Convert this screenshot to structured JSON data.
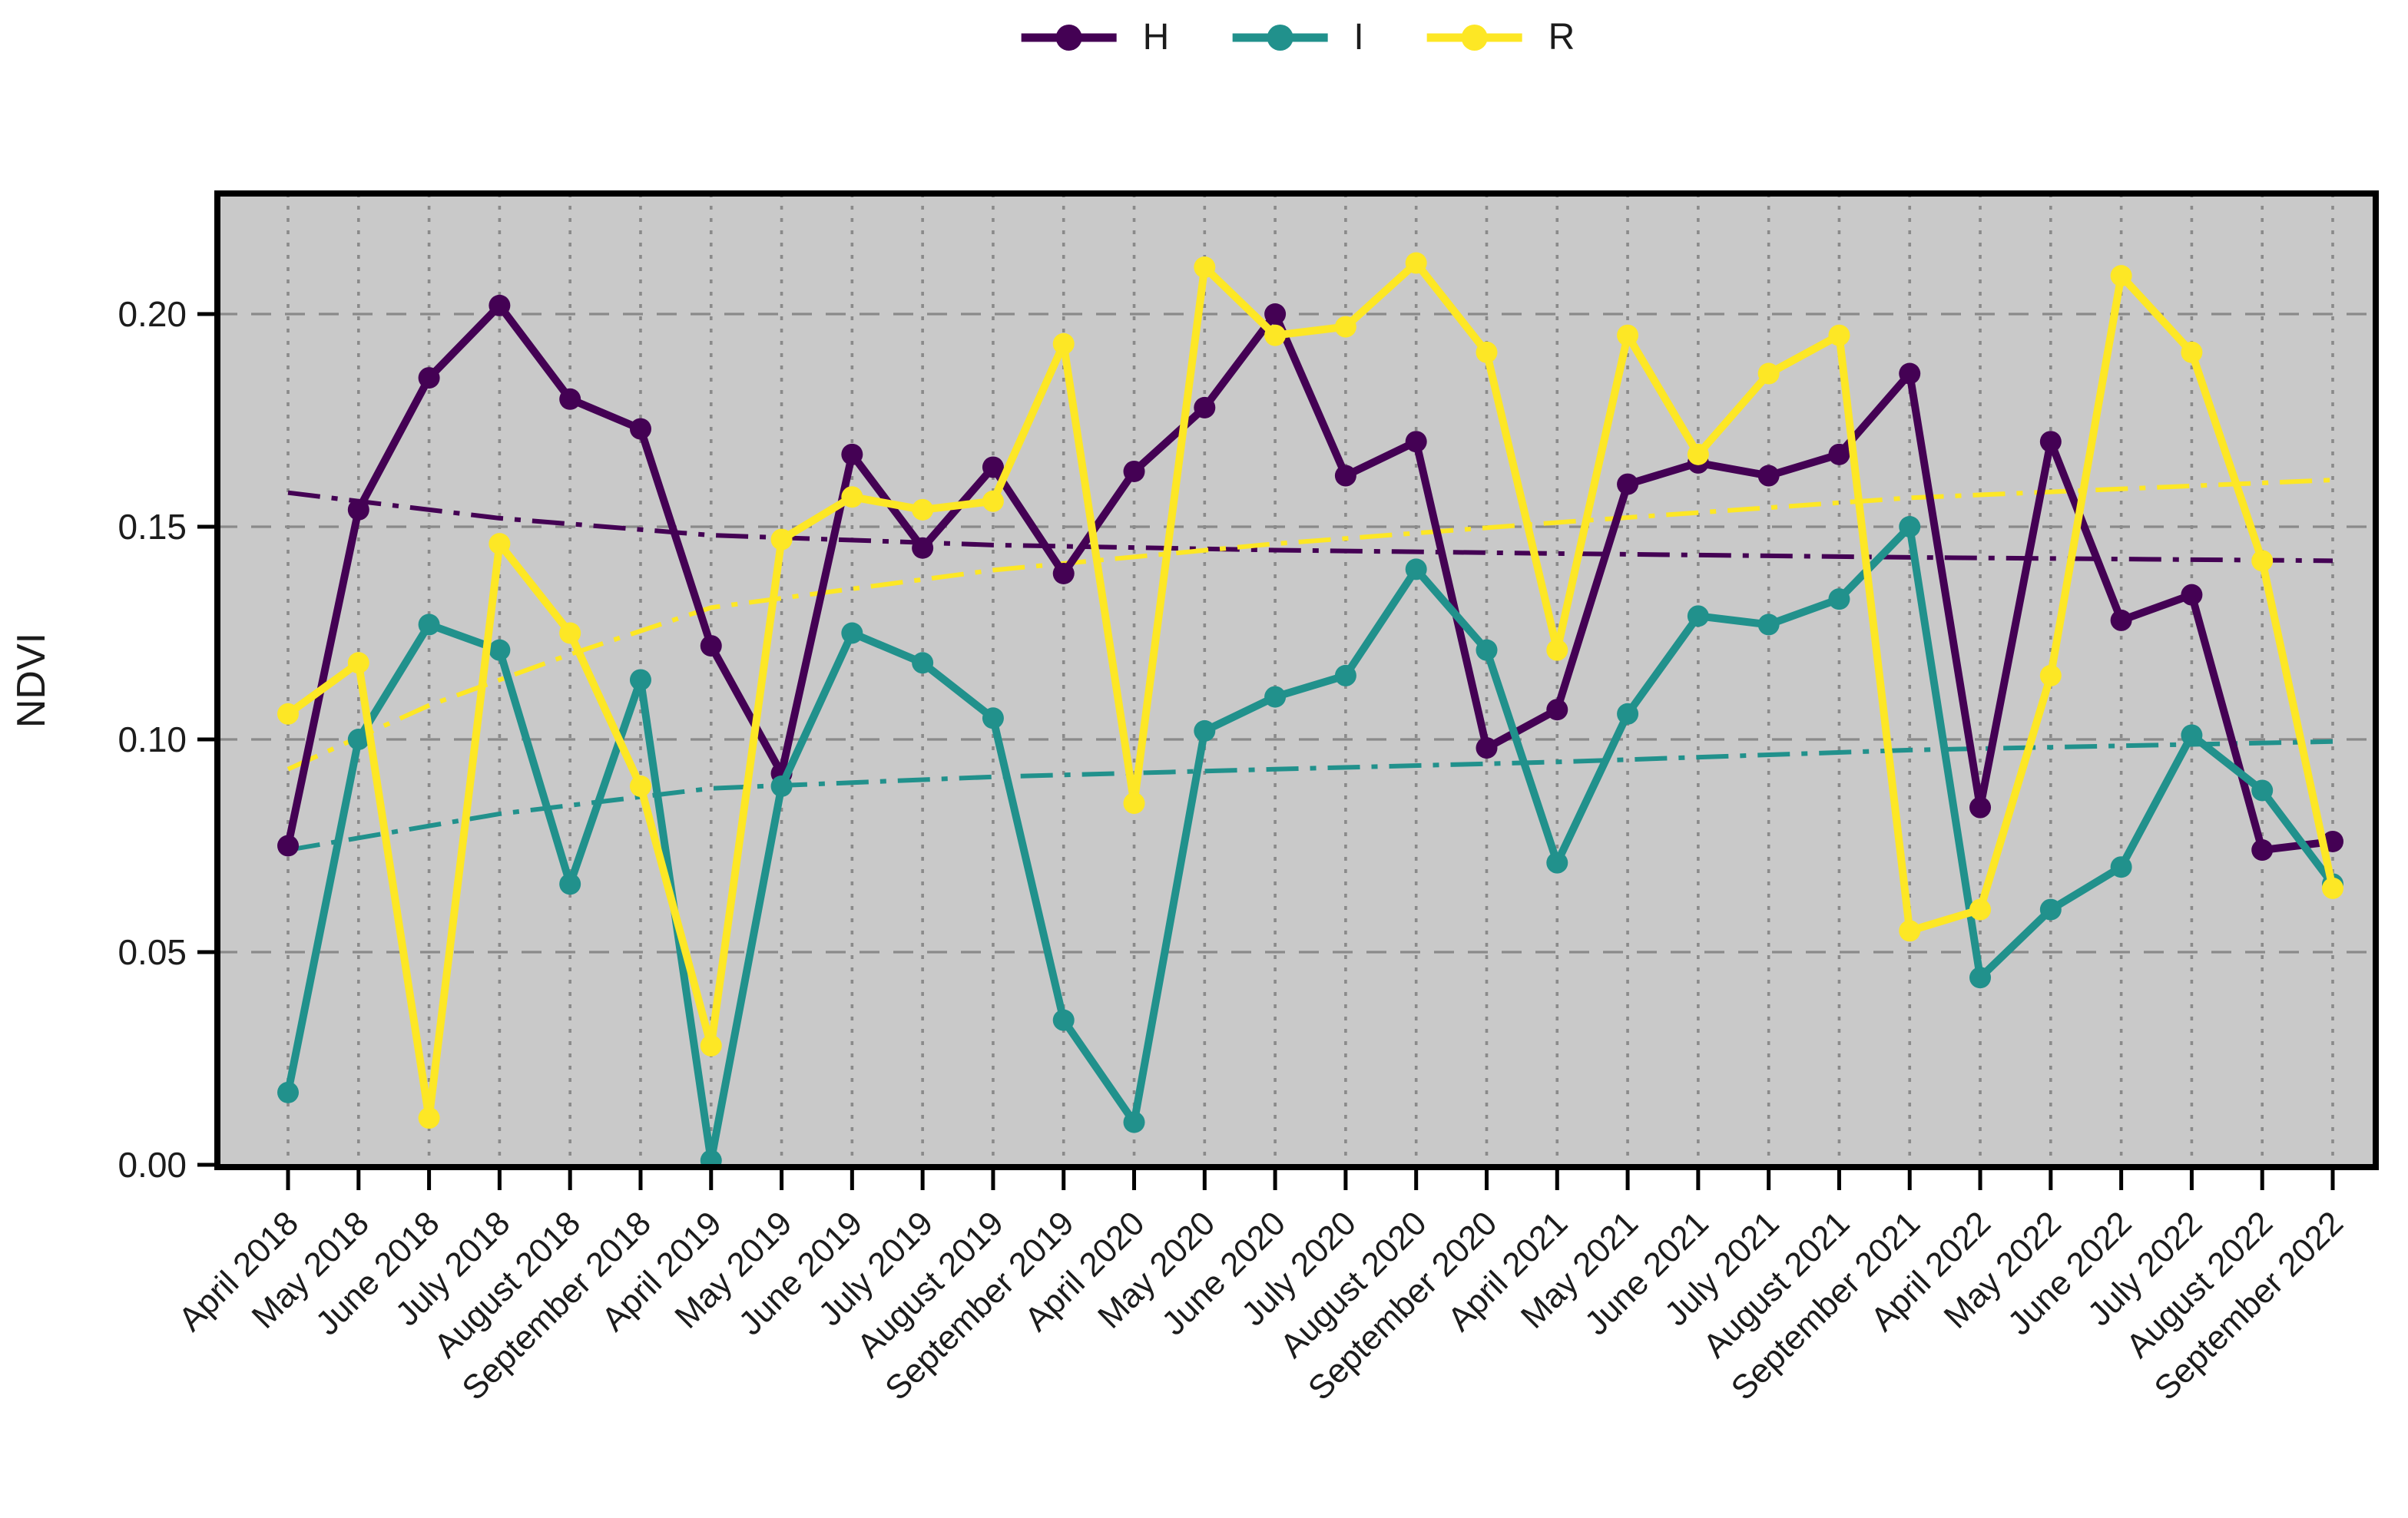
{
  "figure": {
    "background": "#ffffff",
    "plot_border_color": "#000000"
  },
  "legend": {
    "position": "top-center",
    "items": [
      {
        "label": "H",
        "color": "#440154"
      },
      {
        "label": "I",
        "color": "#21918c"
      },
      {
        "label": "R",
        "color": "#fde725"
      }
    ]
  },
  "chart_data": {
    "type": "line",
    "title": "",
    "xlabel": "",
    "ylabel": "NDVI",
    "ylim": [
      0,
      0.228
    ],
    "grid": true,
    "plot_background": "#c9c9c9",
    "gridline_color": "#8a8a8a",
    "legend_position": "top-center",
    "yticks": [
      {
        "label": "0.00",
        "value": 0.0
      },
      {
        "label": "0.05",
        "value": 0.05
      },
      {
        "label": "0.10",
        "value": 0.1
      },
      {
        "label": "0.15",
        "value": 0.15
      },
      {
        "label": "0.20",
        "value": 0.2
      }
    ],
    "categories": [
      "April 2018",
      "May 2018",
      "June 2018",
      "July 2018",
      "August 2018",
      "September 2018",
      "April 2019",
      "May 2019",
      "June 2019",
      "July 2019",
      "August 2019",
      "September 2019",
      "April 2020",
      "May 2020",
      "June 2020",
      "July 2020",
      "August 2020",
      "September 2020",
      "April 2021",
      "May 2021",
      "June 2021",
      "July 2021",
      "August 2021",
      "September 2021",
      "April 2022",
      "May 2022",
      "June 2022",
      "July 2022",
      "August 2022",
      "September 2022"
    ],
    "series": [
      {
        "name": "H",
        "color": "#440154",
        "values": [
          0.075,
          0.154,
          0.185,
          0.202,
          0.18,
          0.173,
          0.122,
          0.092,
          0.167,
          0.145,
          0.164,
          0.139,
          0.163,
          0.178,
          0.2,
          0.162,
          0.17,
          0.098,
          0.107,
          0.16,
          0.165,
          0.162,
          0.167,
          0.186,
          0.084,
          0.17,
          0.128,
          0.134,
          0.074,
          0.076
        ]
      },
      {
        "name": "I",
        "color": "#21918c",
        "values": [
          0.017,
          0.1,
          0.127,
          0.121,
          0.066,
          0.114,
          0.001,
          0.089,
          0.125,
          0.118,
          0.105,
          0.034,
          0.01,
          0.102,
          0.11,
          0.115,
          0.14,
          0.121,
          0.071,
          0.106,
          0.129,
          0.127,
          0.133,
          0.15,
          0.044,
          0.06,
          0.07,
          0.101,
          0.088,
          0.066
        ]
      },
      {
        "name": "R",
        "color": "#fde725",
        "values": [
          0.106,
          0.118,
          0.011,
          0.146,
          0.125,
          0.089,
          0.028,
          0.147,
          0.157,
          0.154,
          0.156,
          0.193,
          0.085,
          0.211,
          0.195,
          0.197,
          0.212,
          0.191,
          0.121,
          0.195,
          0.167,
          0.186,
          0.195,
          0.055,
          0.06,
          0.115,
          0.209,
          0.191,
          0.142,
          0.065
        ]
      }
    ],
    "trend_lines": [
      {
        "name": "H trend",
        "color": "#440154",
        "style": "dash-dot",
        "points": [
          [
            0,
            0.158
          ],
          [
            3,
            0.152
          ],
          [
            6,
            0.148
          ],
          [
            10,
            0.1457
          ],
          [
            14,
            0.1445
          ],
          [
            18,
            0.1437
          ],
          [
            23,
            0.1428
          ],
          [
            29,
            0.142
          ]
        ]
      },
      {
        "name": "I trend",
        "color": "#21918c",
        "style": "dash-dot",
        "points": [
          [
            0,
            0.074
          ],
          [
            3,
            0.0825
          ],
          [
            6,
            0.0885
          ],
          [
            10,
            0.0912
          ],
          [
            14,
            0.093
          ],
          [
            18,
            0.0947
          ],
          [
            23,
            0.0975
          ],
          [
            29,
            0.0995
          ]
        ]
      },
      {
        "name": "R trend",
        "color": "#fde725",
        "style": "dash-dot",
        "points": [
          [
            0,
            0.093
          ],
          [
            2,
            0.108
          ],
          [
            4,
            0.12
          ],
          [
            6,
            0.131
          ],
          [
            10,
            0.1398
          ],
          [
            14,
            0.146
          ],
          [
            18,
            0.151
          ],
          [
            23,
            0.1568
          ],
          [
            29,
            0.161
          ]
        ]
      }
    ]
  }
}
